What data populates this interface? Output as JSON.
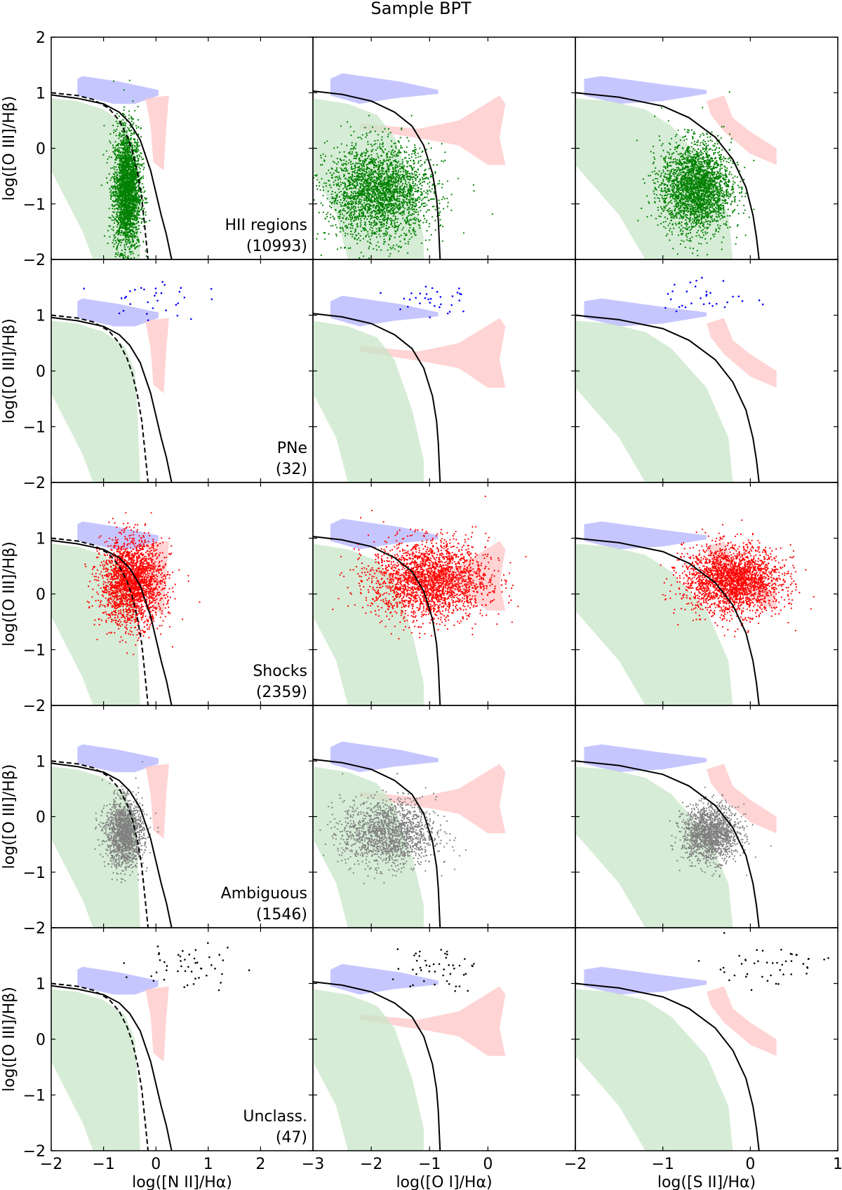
{
  "title": "Sample BPT",
  "chart_data": {
    "type": "scatter",
    "title": "Sample BPT",
    "layout": "5 rows x 3 columns, shared y within rows, shared x within columns",
    "ylabel": "log([O III]/Hβ)",
    "ylim": [
      -2,
      2
    ],
    "yticks": [
      2,
      1,
      0,
      -1,
      -2
    ],
    "yticks_repeated": [
      1,
      0,
      -1,
      -2
    ],
    "ytick_labels": [
      "2",
      "1",
      "0",
      "−1",
      "−2"
    ],
    "columns": [
      {
        "xlabel": "log([N II]/Hα)",
        "xlim": [
          -2,
          3
        ],
        "xticks": [
          -2,
          -1,
          0,
          1,
          2
        ],
        "xtick_labels": [
          "−2",
          "−1",
          "0",
          "1",
          "2"
        ]
      },
      {
        "xlabel": "log([O I]/Hα)",
        "xlim": [
          -3,
          1.5
        ],
        "xticks": [
          -3,
          -2,
          -1,
          0
        ],
        "xtick_labels": [
          "−3",
          "−2",
          "−1",
          "0"
        ]
      },
      {
        "xlabel": "log([S II]/Hα)",
        "xlim": [
          -2,
          1
        ],
        "xticks": [
          -2,
          -1,
          0,
          1
        ],
        "xtick_labels": [
          "−2",
          "−1",
          "0",
          "1"
        ]
      }
    ],
    "rows": [
      {
        "label": "HII regions",
        "count": "(10993)",
        "color": "#008000",
        "n": 10993,
        "clusters": [
          {
            "cx": -0.55,
            "cy": -0.75,
            "sx": 0.13,
            "sy": 0.55
          },
          {
            "cx": -1.85,
            "cy": -0.8,
            "sx": 0.45,
            "sy": 0.42
          },
          {
            "cx": -0.62,
            "cy": -0.7,
            "sx": 0.2,
            "sy": 0.4
          }
        ]
      },
      {
        "label": "PNe",
        "count": "(32)",
        "color": "#0000ff",
        "n": 32,
        "clusters": [
          {
            "cx": -0.05,
            "cy": 1.3,
            "sx": 0.45,
            "sy": 0.2
          },
          {
            "cx": -1.0,
            "cy": 1.3,
            "sx": 0.35,
            "sy": 0.18
          },
          {
            "cx": -0.5,
            "cy": 1.3,
            "sx": 0.25,
            "sy": 0.18
          }
        ]
      },
      {
        "label": "Shocks",
        "count": "(2359)",
        "color": "#ff0000",
        "n": 2359,
        "clusters": [
          {
            "cx": -0.45,
            "cy": 0.2,
            "sx": 0.3,
            "sy": 0.38
          },
          {
            "cx": -1.0,
            "cy": 0.25,
            "sx": 0.5,
            "sy": 0.35
          },
          {
            "cx": -0.2,
            "cy": 0.25,
            "sx": 0.28,
            "sy": 0.3
          }
        ]
      },
      {
        "label": "Ambiguous",
        "count": "(1546)",
        "color": "#808080",
        "n": 1546,
        "clusters": [
          {
            "cx": -0.6,
            "cy": -0.3,
            "sx": 0.18,
            "sy": 0.3
          },
          {
            "cx": -1.7,
            "cy": -0.3,
            "sx": 0.4,
            "sy": 0.3
          },
          {
            "cx": -0.45,
            "cy": -0.3,
            "sx": 0.16,
            "sy": 0.25
          }
        ]
      },
      {
        "label": "Unclass.",
        "count": "(47)",
        "color": "#000000",
        "n": 47,
        "clusters": [
          {
            "cx": 0.6,
            "cy": 1.3,
            "sx": 0.5,
            "sy": 0.22
          },
          {
            "cx": -0.9,
            "cy": 1.3,
            "sx": 0.35,
            "sy": 0.2
          },
          {
            "cx": 0.2,
            "cy": 1.3,
            "sx": 0.4,
            "sy": 0.2
          }
        ]
      }
    ],
    "demarcation_lines": [
      {
        "panel_column": 0,
        "style": "solid",
        "points": [
          [
            -2.0,
            0.96
          ],
          [
            -1.5,
            0.9
          ],
          [
            -1.0,
            0.8
          ],
          [
            -0.7,
            0.65
          ],
          [
            -0.5,
            0.46
          ],
          [
            -0.3,
            0.15
          ],
          [
            -0.1,
            -0.4
          ],
          [
            0.0,
            -0.8
          ],
          [
            0.1,
            -1.2
          ],
          [
            0.2,
            -1.55
          ],
          [
            0.3,
            -2.0
          ]
        ]
      },
      {
        "panel_column": 0,
        "style": "dashed",
        "points": [
          [
            -2.0,
            1.0
          ],
          [
            -1.5,
            0.95
          ],
          [
            -1.2,
            0.88
          ],
          [
            -0.9,
            0.72
          ],
          [
            -0.7,
            0.5
          ],
          [
            -0.55,
            0.22
          ],
          [
            -0.45,
            -0.05
          ],
          [
            -0.35,
            -0.45
          ],
          [
            -0.27,
            -0.9
          ],
          [
            -0.22,
            -1.35
          ],
          [
            -0.15,
            -2.0
          ]
        ]
      },
      {
        "panel_column": 1,
        "style": "solid",
        "points": [
          [
            -3.0,
            1.03
          ],
          [
            -2.5,
            0.97
          ],
          [
            -2.0,
            0.85
          ],
          [
            -1.6,
            0.65
          ],
          [
            -1.3,
            0.4
          ],
          [
            -1.1,
            0.05
          ],
          [
            -0.95,
            -0.45
          ],
          [
            -0.88,
            -0.9
          ],
          [
            -0.85,
            -1.3
          ],
          [
            -0.82,
            -2.0
          ]
        ]
      },
      {
        "panel_column": 2,
        "style": "solid",
        "points": [
          [
            -2.0,
            1.0
          ],
          [
            -1.5,
            0.92
          ],
          [
            -1.0,
            0.76
          ],
          [
            -0.7,
            0.55
          ],
          [
            -0.4,
            0.2
          ],
          [
            -0.2,
            -0.2
          ],
          [
            -0.05,
            -0.7
          ],
          [
            0.03,
            -1.2
          ],
          [
            0.07,
            -1.6
          ],
          [
            0.1,
            -2.0
          ]
        ]
      }
    ],
    "shaded_regions": [
      {
        "name": "blue",
        "color": "#b3b3ff",
        "polygons": [
          [
            [
              -1.5,
              1.25
            ],
            [
              -1.4,
              1.3
            ],
            [
              -0.7,
              1.2
            ],
            [
              0.05,
              1.05
            ],
            [
              0.05,
              0.95
            ],
            [
              -0.4,
              0.8
            ],
            [
              -0.8,
              0.8
            ],
            [
              -1.5,
              0.95
            ]
          ],
          [
            [
              -2.7,
              1.25
            ],
            [
              -2.5,
              1.35
            ],
            [
              -1.5,
              1.2
            ],
            [
              -0.85,
              1.05
            ],
            [
              -0.85,
              0.98
            ],
            [
              -1.6,
              0.9
            ],
            [
              -2.2,
              0.8
            ],
            [
              -2.7,
              0.95
            ]
          ],
          [
            [
              -1.9,
              1.25
            ],
            [
              -1.7,
              1.3
            ],
            [
              -1.0,
              1.15
            ],
            [
              -0.5,
              1.05
            ],
            [
              -0.5,
              0.98
            ],
            [
              -1.0,
              0.85
            ],
            [
              -1.5,
              0.8
            ],
            [
              -1.9,
              0.95
            ]
          ]
        ]
      },
      {
        "name": "red",
        "color": "#ffc5c5",
        "polygons": [
          [
            [
              -0.2,
              0.9
            ],
            [
              0.25,
              0.95
            ],
            [
              0.2,
              0.4
            ],
            [
              0.15,
              -0.4
            ],
            [
              -0.05,
              -0.25
            ],
            [
              -0.1,
              0.4
            ]
          ],
          [
            [
              -2.2,
              0.45
            ],
            [
              -1.2,
              0.35
            ],
            [
              -0.5,
              0.5
            ],
            [
              0.2,
              0.95
            ],
            [
              0.3,
              0.8
            ],
            [
              0.2,
              0.2
            ],
            [
              0.3,
              -0.3
            ],
            [
              0.0,
              -0.3
            ],
            [
              -0.5,
              0.05
            ],
            [
              -1.0,
              0.15
            ],
            [
              -2.2,
              0.35
            ]
          ],
          [
            [
              -0.5,
              0.85
            ],
            [
              -0.3,
              0.95
            ],
            [
              -0.2,
              0.55
            ],
            [
              0.0,
              0.3
            ],
            [
              0.3,
              0.0
            ],
            [
              0.3,
              -0.3
            ],
            [
              0.0,
              -0.1
            ],
            [
              -0.3,
              0.3
            ],
            [
              -0.45,
              0.6
            ]
          ]
        ]
      },
      {
        "name": "green",
        "color": "#c8e6c8",
        "polygons": [
          [
            [
              -2.0,
              0.9
            ],
            [
              -1.5,
              0.85
            ],
            [
              -1.0,
              0.7
            ],
            [
              -0.6,
              0.45
            ],
            [
              -0.4,
              0.0
            ],
            [
              -0.35,
              -0.8
            ],
            [
              -0.3,
              -2.0
            ],
            [
              -1.2,
              -2.0
            ],
            [
              -1.4,
              -1.5
            ],
            [
              -2.0,
              -0.4
            ]
          ],
          [
            [
              -3.0,
              0.9
            ],
            [
              -2.4,
              0.8
            ],
            [
              -1.9,
              0.6
            ],
            [
              -1.6,
              0.2
            ],
            [
              -1.3,
              -0.7
            ],
            [
              -1.1,
              -1.6
            ],
            [
              -1.1,
              -2.0
            ],
            [
              -2.4,
              -2.0
            ],
            [
              -2.6,
              -1.2
            ],
            [
              -3.0,
              -0.4
            ]
          ],
          [
            [
              -2.0,
              0.9
            ],
            [
              -1.6,
              0.85
            ],
            [
              -1.2,
              0.7
            ],
            [
              -0.9,
              0.4
            ],
            [
              -0.5,
              -0.3
            ],
            [
              -0.25,
              -1.2
            ],
            [
              -0.2,
              -2.0
            ],
            [
              -1.2,
              -2.0
            ],
            [
              -1.5,
              -1.2
            ],
            [
              -2.0,
              -0.3
            ]
          ]
        ]
      }
    ]
  }
}
